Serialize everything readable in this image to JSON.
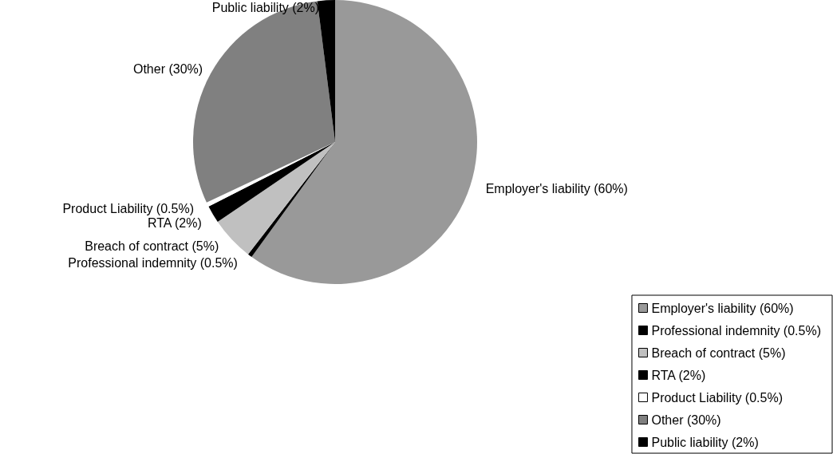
{
  "chart_data": {
    "type": "pie",
    "categories": [
      "Employer's liability (60%)",
      "Professional indemnity (0.5%)",
      "Breach of contract (5%)",
      "RTA (2%)",
      "Product Liability (0.5%)",
      "Other (30%)",
      "Public liability (2%)"
    ],
    "values": [
      60,
      0.5,
      5,
      2,
      0.5,
      30,
      2
    ],
    "colors": [
      "#999999",
      "#000000",
      "#c0c0c0",
      "#000000",
      "#ffffff",
      "#808080",
      "#000000"
    ],
    "legend": "bottom right"
  }
}
